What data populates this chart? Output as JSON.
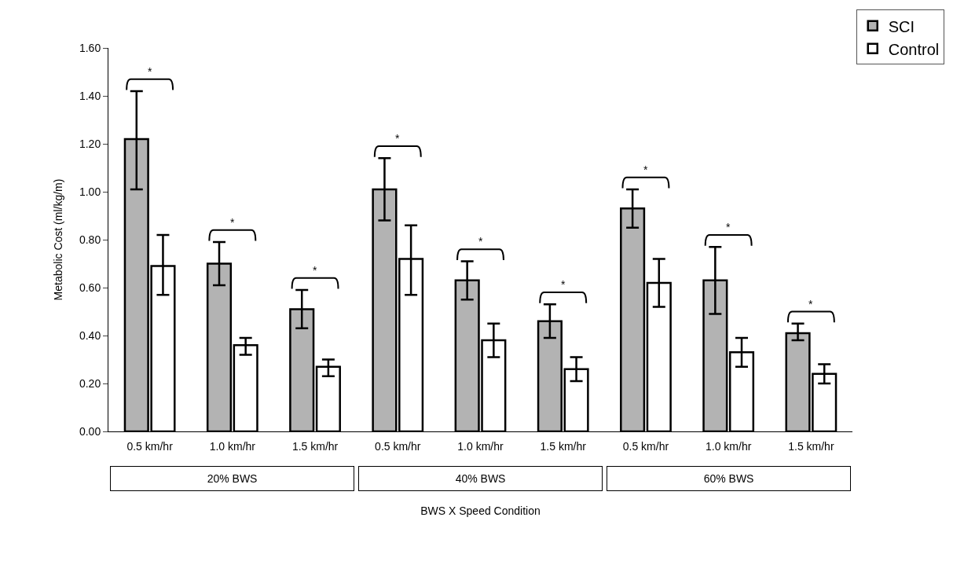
{
  "chart_data": {
    "type": "bar",
    "ylabel": "Metabolic Cost (ml/kg/m)",
    "xlabel": "BWS X Speed Condition",
    "categories": [
      "0.5 km/hr",
      "1.0 km/hr",
      "1.5 km/hr",
      "0.5 km/hr",
      "1.0 km/hr",
      "1.5 km/hr",
      "0.5 km/hr",
      "1.0 km/hr",
      "1.5 km/hr"
    ],
    "series": [
      {
        "name": "SCI",
        "color": "#b3b3b3",
        "values": [
          1.22,
          0.7,
          0.51,
          1.01,
          0.63,
          0.46,
          0.93,
          0.63,
          0.41
        ],
        "errors": [
          [
            1.01,
            1.42
          ],
          [
            0.61,
            0.79
          ],
          [
            0.43,
            0.59
          ],
          [
            0.88,
            1.14
          ],
          [
            0.55,
            0.71
          ],
          [
            0.39,
            0.53
          ],
          [
            0.85,
            1.01
          ],
          [
            0.49,
            0.77
          ],
          [
            0.38,
            0.45
          ]
        ]
      },
      {
        "name": "Control",
        "color": "#ffffff",
        "values": [
          0.69,
          0.36,
          0.27,
          0.72,
          0.38,
          0.26,
          0.62,
          0.33,
          0.24
        ],
        "errors": [
          [
            0.57,
            0.82
          ],
          [
            0.32,
            0.39
          ],
          [
            0.23,
            0.3
          ],
          [
            0.57,
            0.86
          ],
          [
            0.31,
            0.45
          ],
          [
            0.21,
            0.31
          ],
          [
            0.52,
            0.72
          ],
          [
            0.27,
            0.39
          ],
          [
            0.2,
            0.28
          ]
        ]
      }
    ],
    "ylim": [
      0,
      1.6
    ],
    "yticks": [
      {
        "value": 0,
        "label": "0.00"
      },
      {
        "value": 0.2,
        "label": "0.20"
      },
      {
        "value": 0.4,
        "label": "0.40"
      },
      {
        "value": 0.6,
        "label": "0.60"
      },
      {
        "value": 0.8,
        "label": "0.80"
      },
      {
        "value": 1.0,
        "label": "1.00"
      },
      {
        "value": 1.2,
        "label": "1.20"
      },
      {
        "value": 1.4,
        "label": "1.40"
      },
      {
        "value": 1.6,
        "label": "1.60"
      }
    ],
    "grid": false,
    "legend": "top right",
    "annotations": [
      "20% BWS",
      "40% BWS",
      "60% BWS",
      "*",
      "*",
      "*",
      "*",
      "*",
      "*",
      "*",
      "*",
      "*"
    ]
  }
}
